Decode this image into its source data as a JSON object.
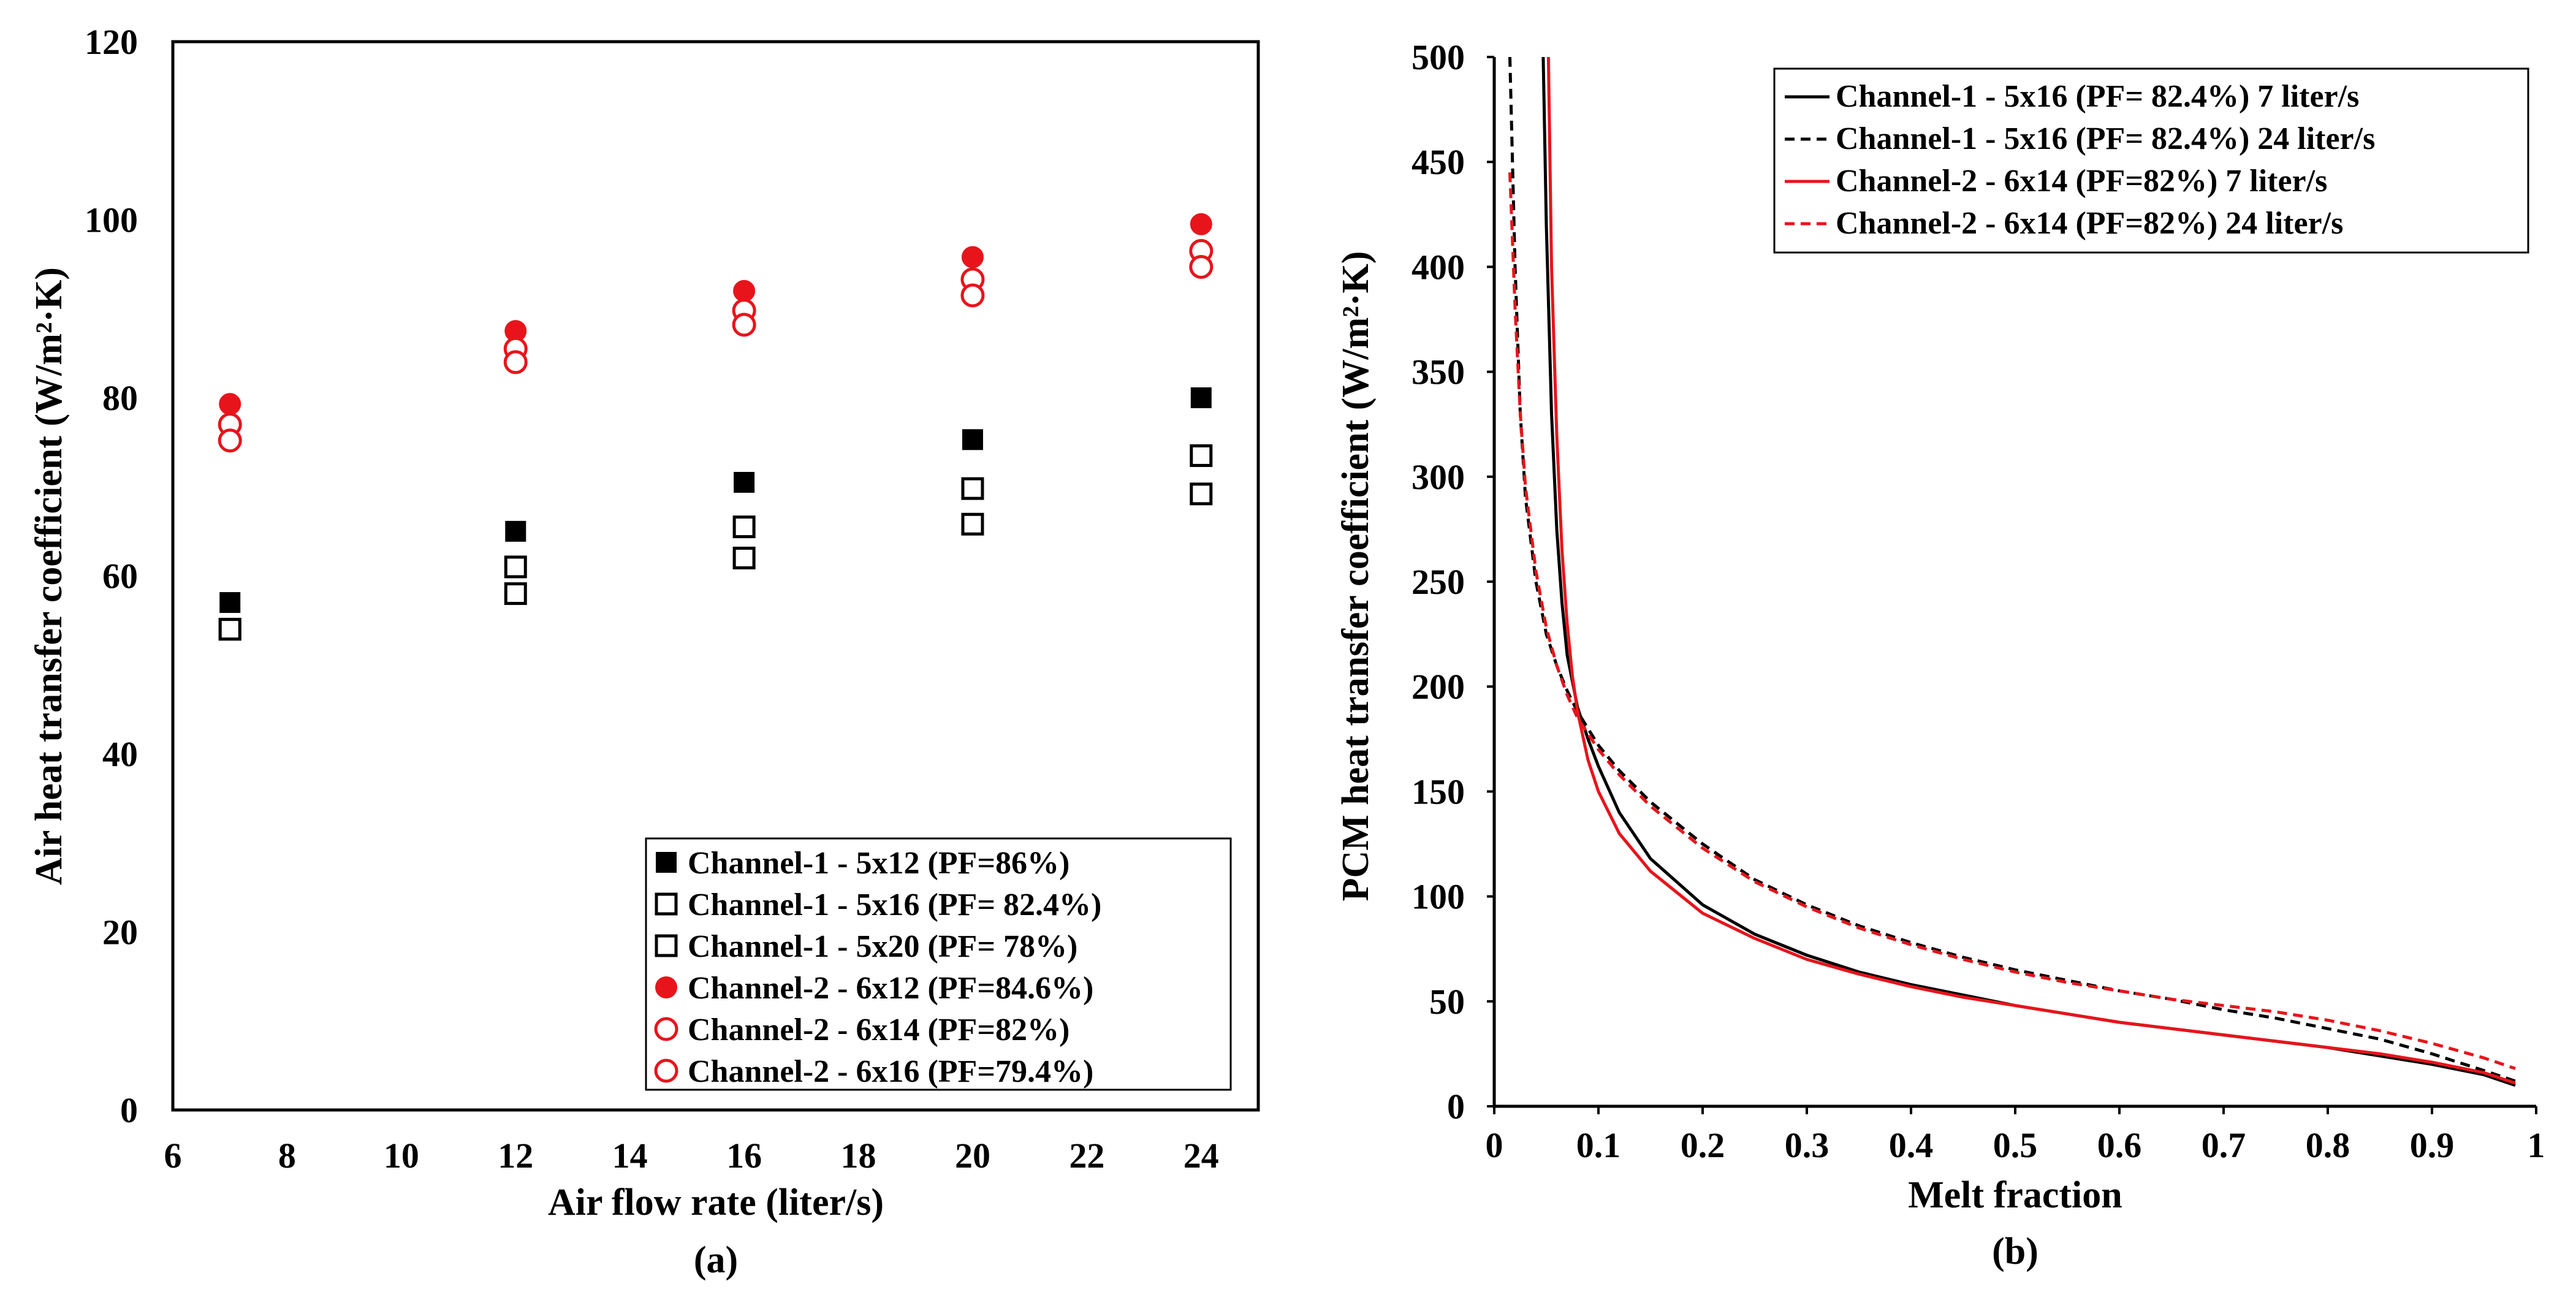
{
  "chart_data": [
    {
      "type": "scatter",
      "panel_label": "(a)",
      "xlabel": "Air flow rate (liter/s)",
      "ylabel": "Air heat transfer coefficient (W/m²·K)",
      "xlim": [
        6,
        25
      ],
      "ylim": [
        0,
        120
      ],
      "xticks": [
        "6",
        "8",
        "10",
        "12",
        "14",
        "16",
        "18",
        "20",
        "22",
        "24"
      ],
      "yticks": [
        "0",
        "20",
        "40",
        "60",
        "80",
        "100",
        "120"
      ],
      "legend_position": "bottom-right",
      "grid": false,
      "x": [
        7,
        12,
        16,
        20,
        24
      ],
      "series": [
        {
          "name": "Channel-1 - 5x12 (PF=86%)",
          "marker": "square-filled",
          "color": "#000000",
          "values": [
            57,
            65,
            70.5,
            75.3,
            80
          ]
        },
        {
          "name": "Channel-1 - 5x16 (PF= 82.4%)",
          "marker": "square-open",
          "color": "#000000",
          "values": [
            54,
            61,
            65.5,
            69.8,
            73.5
          ]
        },
        {
          "name": "Channel-1 - 5x20 (PF= 78%)",
          "marker": "square-open",
          "color": "#000000",
          "values": [
            54,
            58,
            62,
            65.8,
            69.2
          ]
        },
        {
          "name": "Channel-2 - 6x12 (PF=84.6%)",
          "marker": "circle-filled",
          "color": "#e8141b",
          "values": [
            79.3,
            87.5,
            92,
            95.8,
            99.5
          ]
        },
        {
          "name": "Channel-2 - 6x14 (PF=82%)",
          "marker": "circle-open",
          "color": "#e8141b",
          "values": [
            77,
            85.5,
            89.8,
            93.3,
            96.5
          ]
        },
        {
          "name": "Channel-2 - 6x16 (PF=79.4%)",
          "marker": "circle-open",
          "color": "#e8141b",
          "values": [
            75.2,
            84,
            88.2,
            91.5,
            94.7
          ]
        }
      ]
    },
    {
      "type": "line",
      "panel_label": "(b)",
      "xlabel": "Melt fraction",
      "ylabel": "PCM heat transfer coefficient (W/m²·K)",
      "xlim": [
        0,
        1
      ],
      "ylim": [
        0,
        500
      ],
      "xticks": [
        "0",
        "0.1",
        "0.2",
        "0.3",
        "0.4",
        "0.5",
        "0.6",
        "0.7",
        "0.8",
        "0.9",
        "1"
      ],
      "yticks": [
        "0",
        "50",
        "100",
        "150",
        "200",
        "250",
        "300",
        "350",
        "400",
        "450",
        "500"
      ],
      "legend_position": "top-right",
      "grid": false,
      "series": [
        {
          "name": "Channel-1 - 5x16 (PF= 82.4%) 7 liter/s",
          "color": "#000000",
          "dash": "solid",
          "x": [
            0.047,
            0.05,
            0.055,
            0.06,
            0.065,
            0.07,
            0.08,
            0.09,
            0.1,
            0.12,
            0.15,
            0.2,
            0.25,
            0.3,
            0.35,
            0.4,
            0.45,
            0.5,
            0.55,
            0.6,
            0.65,
            0.7,
            0.75,
            0.8,
            0.85,
            0.9,
            0.95,
            0.98
          ],
          "y": [
            500,
            420,
            330,
            275,
            240,
            215,
            190,
            175,
            162,
            140,
            118,
            96,
            82,
            72,
            64,
            58,
            53,
            48,
            44,
            40,
            37,
            34,
            31,
            28,
            24,
            20,
            15,
            10
          ]
        },
        {
          "name": "Channel-1 - 5x16 (PF= 82.4%) 24 liter/s",
          "color": "#000000",
          "dash": "dashed",
          "x": [
            0.015,
            0.02,
            0.025,
            0.03,
            0.04,
            0.05,
            0.06,
            0.07,
            0.08,
            0.1,
            0.12,
            0.15,
            0.2,
            0.25,
            0.3,
            0.35,
            0.4,
            0.45,
            0.5,
            0.55,
            0.6,
            0.65,
            0.7,
            0.75,
            0.8,
            0.85,
            0.9,
            0.95,
            0.98
          ],
          "y": [
            500,
            400,
            330,
            290,
            250,
            225,
            210,
            198,
            188,
            172,
            160,
            145,
            125,
            108,
            96,
            86,
            78,
            71,
            65,
            60,
            55,
            51,
            46,
            42,
            37,
            32,
            25,
            17,
            12
          ]
        },
        {
          "name": "Channel-2 - 6x14 (PF=82%) 7 liter/s",
          "color": "#e8141b",
          "dash": "solid",
          "x": [
            0.052,
            0.055,
            0.06,
            0.065,
            0.07,
            0.075,
            0.08,
            0.09,
            0.1,
            0.12,
            0.15,
            0.2,
            0.25,
            0.3,
            0.35,
            0.4,
            0.45,
            0.5,
            0.55,
            0.6,
            0.65,
            0.7,
            0.75,
            0.8,
            0.85,
            0.9,
            0.95,
            0.98
          ],
          "y": [
            500,
            400,
            320,
            265,
            230,
            205,
            188,
            165,
            150,
            130,
            112,
            92,
            80,
            70,
            63,
            57,
            52,
            48,
            44,
            40,
            37,
            34,
            31,
            28,
            25,
            21,
            16,
            11
          ]
        },
        {
          "name": "Channel-2 - 6x14 (PF=82%) 24 liter/s",
          "color": "#e8141b",
          "dash": "dashed",
          "x": [
            0.015,
            0.02,
            0.025,
            0.03,
            0.04,
            0.05,
            0.06,
            0.07,
            0.08,
            0.1,
            0.12,
            0.15,
            0.2,
            0.25,
            0.3,
            0.35,
            0.4,
            0.45,
            0.5,
            0.55,
            0.6,
            0.65,
            0.7,
            0.75,
            0.8,
            0.85,
            0.9,
            0.95,
            0.98
          ],
          "y": [
            445,
            380,
            330,
            295,
            255,
            228,
            210,
            196,
            185,
            170,
            158,
            143,
            123,
            107,
            95,
            85,
            77,
            70,
            64,
            59,
            55,
            51,
            48,
            45,
            41,
            36,
            30,
            23,
            18
          ]
        }
      ]
    }
  ]
}
